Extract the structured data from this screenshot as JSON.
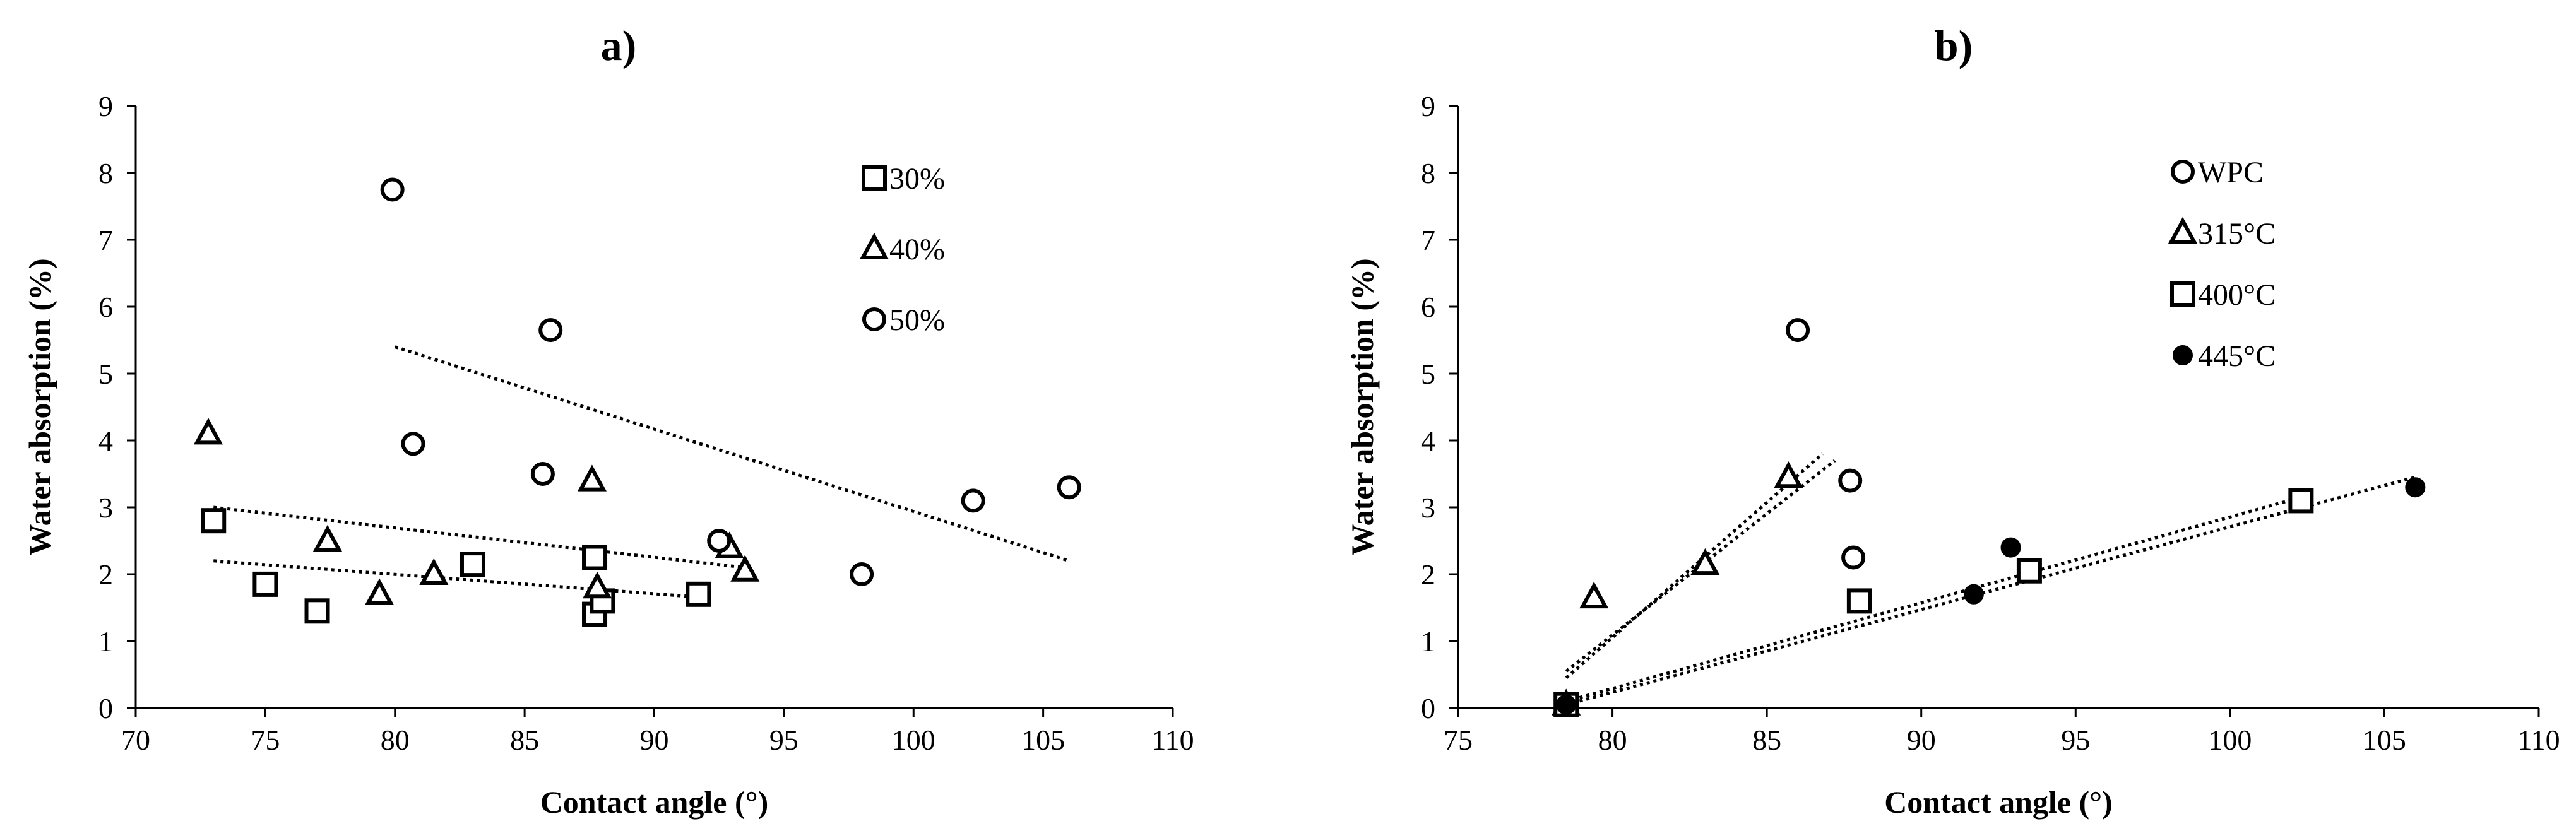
{
  "colors": {
    "ink": "#000000",
    "background": "#ffffff"
  },
  "chart_data": [
    {
      "type": "scatter",
      "panel_label": "a)",
      "xlabel": "Contact angle (°)",
      "ylabel": "Water absorption (%)",
      "xlim": [
        70,
        110
      ],
      "ylim": [
        0,
        9
      ],
      "xticks": [
        70,
        75,
        80,
        85,
        90,
        95,
        100,
        105,
        110
      ],
      "yticks": [
        0,
        1,
        2,
        3,
        4,
        5,
        6,
        7,
        8,
        9
      ],
      "grid": false,
      "legend_position": "top-right",
      "series": [
        {
          "name": "30%",
          "marker": "square",
          "points": [
            [
              73,
              2.8
            ],
            [
              75,
              1.85
            ],
            [
              77,
              1.45
            ],
            [
              83,
              2.15
            ],
            [
              87.7,
              2.25
            ],
            [
              87.7,
              1.4
            ],
            [
              88,
              1.6
            ],
            [
              91.7,
              1.7
            ]
          ],
          "trendline": [
            [
              73,
              2.2
            ],
            [
              92,
              1.65
            ]
          ]
        },
        {
          "name": "40%",
          "marker": "triangle",
          "points": [
            [
              72.8,
              4.1
            ],
            [
              77.4,
              2.5
            ],
            [
              79.4,
              1.7
            ],
            [
              81.5,
              2.0
            ],
            [
              87.6,
              3.4
            ],
            [
              87.8,
              1.8
            ],
            [
              92.9,
              2.4
            ],
            [
              93.5,
              2.05
            ]
          ],
          "trendline": [
            [
              73,
              3.0
            ],
            [
              93.5,
              2.1
            ]
          ]
        },
        {
          "name": "50%",
          "marker": "circle",
          "points": [
            [
              79.9,
              7.75
            ],
            [
              80.7,
              3.95
            ],
            [
              85.7,
              3.5
            ],
            [
              86,
              5.65
            ],
            [
              92.5,
              2.5
            ],
            [
              98,
              2.0
            ],
            [
              102.3,
              3.1
            ],
            [
              106,
              3.3
            ]
          ],
          "trendline": [
            [
              80,
              5.4
            ],
            [
              106,
              2.2
            ]
          ]
        }
      ]
    },
    {
      "type": "scatter",
      "panel_label": "b)",
      "xlabel": "Contact angle (°)",
      "ylabel": "Water absorption (%)",
      "xlim": [
        75,
        110
      ],
      "ylim": [
        0,
        9
      ],
      "xticks": [
        75,
        80,
        85,
        90,
        95,
        100,
        105,
        110
      ],
      "yticks": [
        0,
        1,
        2,
        3,
        4,
        5,
        6,
        7,
        8,
        9
      ],
      "grid": false,
      "legend_position": "top-right",
      "series": [
        {
          "name": "WPC",
          "marker": "circle",
          "points": [
            [
              78.5,
              0.05
            ],
            [
              86,
              5.65
            ],
            [
              87.7,
              3.4
            ],
            [
              87.8,
              2.25
            ]
          ],
          "trendline": [
            [
              78.5,
              0.55
            ],
            [
              87.2,
              3.7
            ]
          ]
        },
        {
          "name": "315°C",
          "marker": "triangle",
          "points": [
            [
              78.5,
              0.05
            ],
            [
              79.4,
              1.65
            ],
            [
              83,
              2.15
            ],
            [
              85.7,
              3.45
            ]
          ],
          "trendline": [
            [
              78.5,
              0.45
            ],
            [
              86.8,
              3.8
            ]
          ]
        },
        {
          "name": "400°C",
          "marker": "square",
          "points": [
            [
              78.5,
              0.05
            ],
            [
              88,
              1.6
            ],
            [
              93.5,
              2.05
            ],
            [
              102.3,
              3.1
            ]
          ],
          "trendline": [
            [
              78.5,
              0.1
            ],
            [
              102.3,
              3.15
            ]
          ]
        },
        {
          "name": "445°C",
          "marker": "filled-circle",
          "points": [
            [
              78.5,
              0.05
            ],
            [
              91.7,
              1.7
            ],
            [
              92.9,
              2.4
            ],
            [
              106,
              3.3
            ]
          ],
          "trendline": [
            [
              78.5,
              0.05
            ],
            [
              106,
              3.45
            ]
          ]
        }
      ]
    }
  ]
}
